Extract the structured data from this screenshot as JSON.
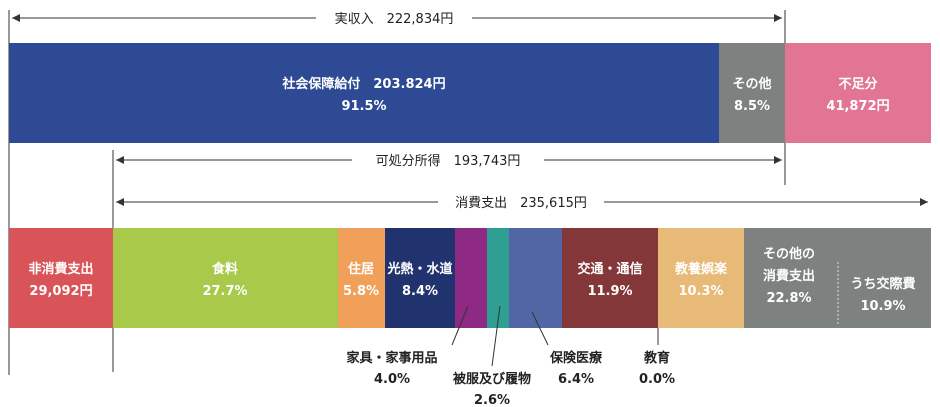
{
  "chart_data": [
    {
      "type": "bar",
      "orientation": "horizontal-stacked",
      "bracket": {
        "label": "実収入",
        "value": "222,834円"
      },
      "segments": [
        {
          "name": "社会保障給付",
          "amount": "203.824円",
          "share": "91.5%",
          "color": "#2e4a94"
        },
        {
          "name": "その他",
          "share": "8.5%",
          "color": "#7d8180"
        },
        {
          "name": "不足分",
          "amount": "41,872円",
          "color": "#e27594"
        }
      ]
    },
    {
      "type": "bar",
      "orientation": "horizontal-stacked",
      "brackets": [
        {
          "label": "可処分所得",
          "value": "193,743円"
        },
        {
          "label": "消費支出",
          "value": "235,615円"
        }
      ],
      "segments": [
        {
          "name": "非消費支出",
          "amount": "29,092円",
          "color": "#d95459"
        },
        {
          "name": "食料",
          "share": "27.7%",
          "color": "#a8c94a"
        },
        {
          "name": "住居",
          "share": "5.8%",
          "color": "#f0a058"
        },
        {
          "name": "光熱・水道",
          "share": "8.4%",
          "color": "#20336e"
        },
        {
          "name": "家具・家事用品",
          "share": "4.0%",
          "color": "#8e2a83"
        },
        {
          "name": "被服及び履物",
          "share": "2.6%",
          "color": "#2f9f94"
        },
        {
          "name": "保険医療",
          "share": "6.4%",
          "color": "#5266a6"
        },
        {
          "name": "交通・通信",
          "share": "11.9%",
          "color": "#843739"
        },
        {
          "name": "教育",
          "share": "0.0%",
          "color": "#843739"
        },
        {
          "name": "教養娯楽",
          "share": "10.3%",
          "color": "#e8ba77"
        },
        {
          "name": "その他の消費支出",
          "share": "22.8%",
          "color": "#7d8180"
        },
        {
          "name": "うち交際費",
          "share": "10.9%",
          "color": "#7d8180"
        }
      ]
    }
  ],
  "labels": {
    "income_bracket": "実収入　222,834円",
    "disposable_bracket": "可処分所得　193,743円",
    "consumption_bracket": "消費支出　235,615円",
    "social_security": "社会保障給付　203.824円",
    "social_security_pct": "91.5%",
    "other_income": "その他",
    "other_income_pct": "8.5%",
    "shortfall": "不足分",
    "shortfall_amt": "41,872円",
    "non_consumption": "非消費支出",
    "non_consumption_amt": "29,092円",
    "food": "食料",
    "food_pct": "27.7%",
    "housing": "住居",
    "housing_pct": "5.8%",
    "utilities": "光熱・水道",
    "utilities_pct": "8.4%",
    "furniture": "家具・家事用品",
    "furniture_pct": "4.0%",
    "clothing": "被服及び履物",
    "clothing_pct": "2.6%",
    "medical": "保険医療",
    "medical_pct": "6.4%",
    "transport": "交通・通信",
    "transport_pct": "11.9%",
    "education": "教育",
    "education_pct": "0.0%",
    "recreation": "教養娯楽",
    "recreation_pct": "10.3%",
    "other_consumption_1": "その他の",
    "other_consumption_2": "消費支出",
    "other_consumption_pct": "22.8%",
    "social_expense": "うち交際費",
    "social_expense_pct": "10.9%"
  }
}
